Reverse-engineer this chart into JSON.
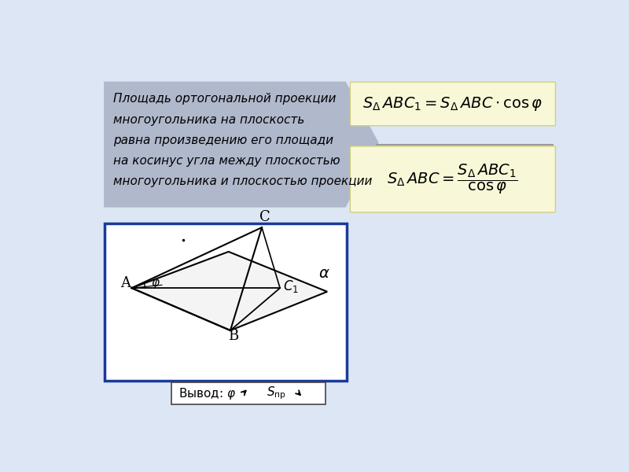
{
  "bg_color": "#c8d4e8",
  "outer_bg": "#dce6f4",
  "text_box_color": "#b0b8cc",
  "formula_box_color": "#f8f8d8",
  "blue_box_color": "#1a3a9a",
  "white_bg": "#ffffff",
  "theorem_text_lines": [
    "Площадь ортогональной проекции",
    "многоугольника на плоскость",
    "равна произведению его площади",
    "на косинус угла между плоскостью",
    "многоугольника и плоскостью проекции"
  ],
  "divider_line_color": "#999999",
  "arrow_color": "#999999"
}
